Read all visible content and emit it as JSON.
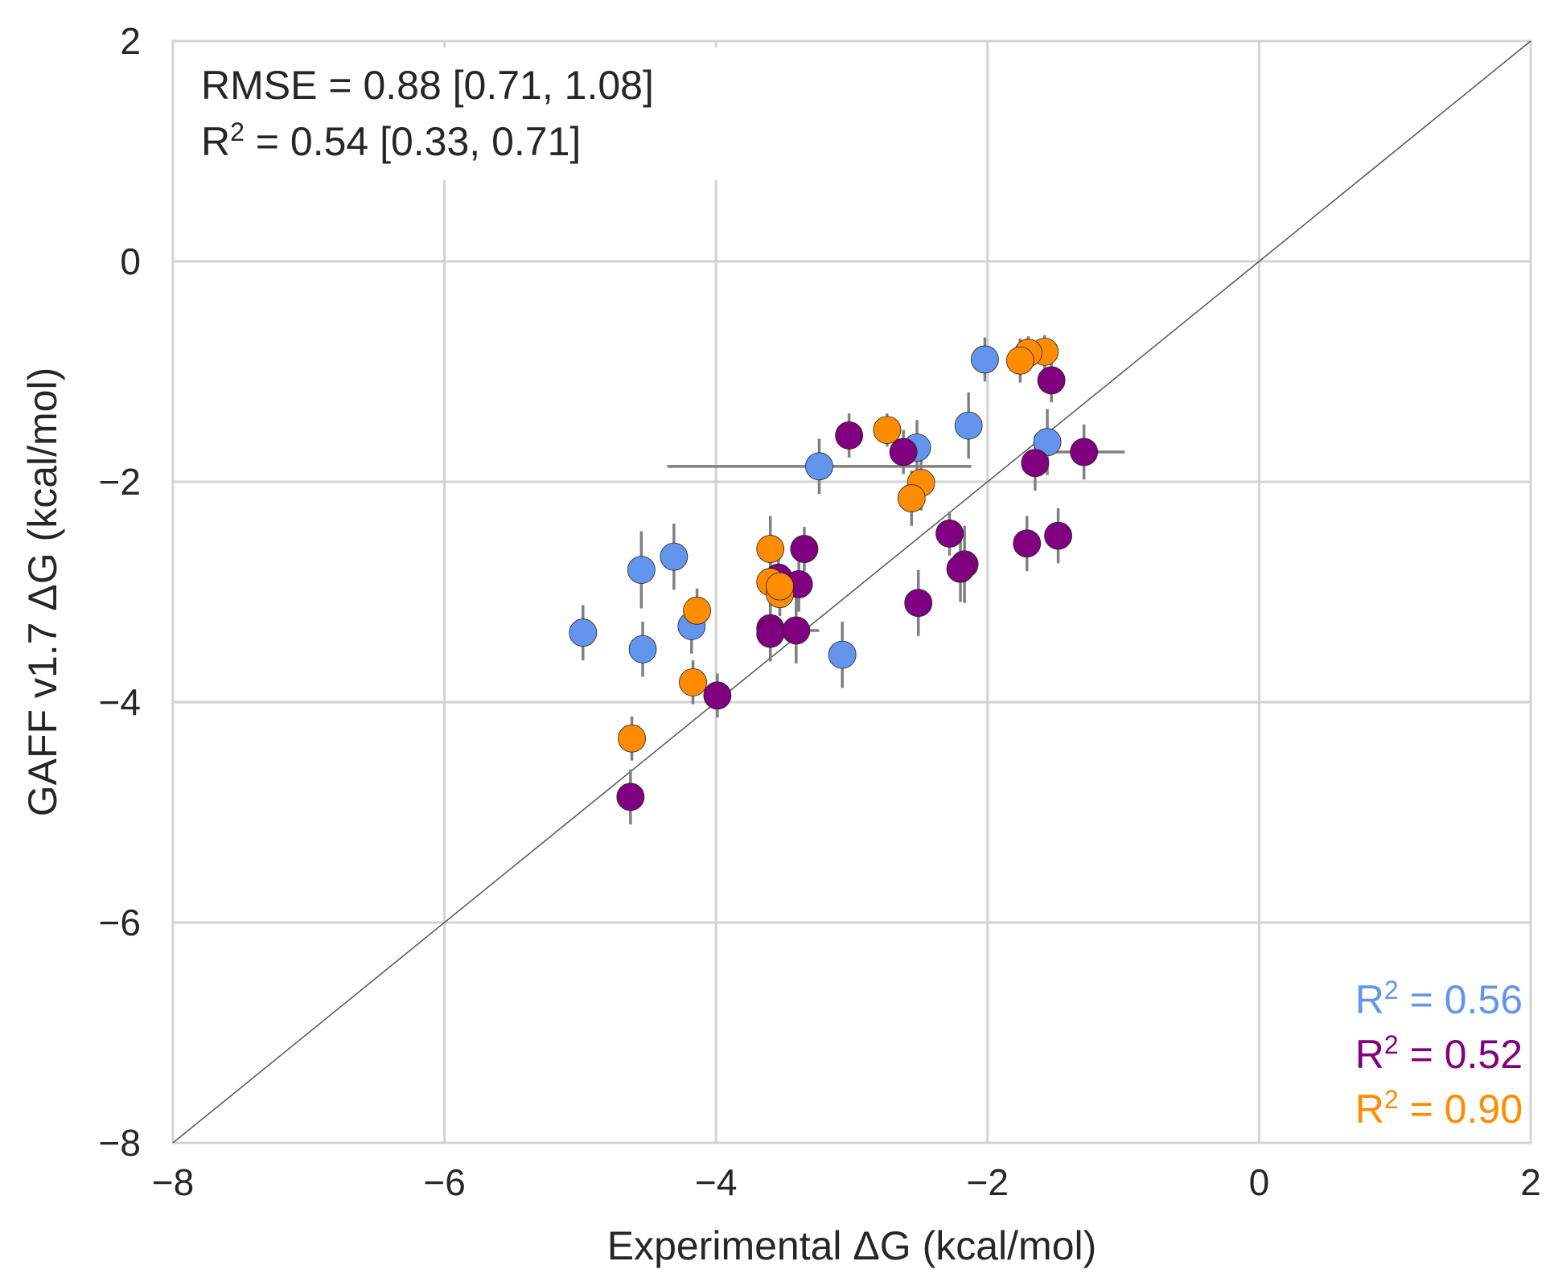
{
  "chart_data": {
    "type": "scatter",
    "xlabel": "Experimental ΔG (kcal/mol)",
    "ylabel": "GAFF v1.7 ΔG (kcal/mol)",
    "xlim": [
      -8,
      2
    ],
    "ylim": [
      -8,
      2
    ],
    "xticks": [
      -8,
      -6,
      -4,
      -2,
      0,
      2
    ],
    "yticks": [
      -8,
      -6,
      -4,
      -2,
      0,
      2
    ],
    "xtick_labels": [
      "−8",
      "−6",
      "−4",
      "−2",
      "0",
      "2"
    ],
    "ytick_labels": [
      "−8",
      "−6",
      "−4",
      "−2",
      "0",
      "2"
    ],
    "grid": true,
    "reference_line": "y = x",
    "stats": {
      "rmse_text": "RMSE = 0.88 [0.71, 1.08]",
      "r2_prefix": "R",
      "r2_sup": "2",
      "r2_rest": " = 0.54 [0.33, 0.71]"
    },
    "series": [
      {
        "name": "blue",
        "color": "#6495ED",
        "r2_prefix": "R",
        "r2_sup": "2",
        "r2_rest": " = 0.56",
        "points": [
          {
            "x": -2.02,
            "y": -0.89,
            "xerr": 0.0,
            "yerr": 0.2
          },
          {
            "x": -2.14,
            "y": -1.49,
            "xerr": 0.0,
            "yerr": 0.3
          },
          {
            "x": -1.56,
            "y": -1.64,
            "xerr": 0.0,
            "yerr": 0.3
          },
          {
            "x": -2.52,
            "y": -1.69,
            "xerr": 0.0,
            "yerr": 0.25
          },
          {
            "x": -3.24,
            "y": -1.86,
            "xerr": 1.12,
            "yerr": 0.25
          },
          {
            "x": -4.31,
            "y": -2.68,
            "xerr": 0.0,
            "yerr": 0.3
          },
          {
            "x": -4.55,
            "y": -2.8,
            "xerr": 0.0,
            "yerr": 0.35
          },
          {
            "x": -4.98,
            "y": -3.37,
            "xerr": 0.0,
            "yerr": 0.25
          },
          {
            "x": -4.18,
            "y": -3.31,
            "xerr": 0.0,
            "yerr": 0.25
          },
          {
            "x": -4.54,
            "y": -3.52,
            "xerr": 0.0,
            "yerr": 0.25
          },
          {
            "x": -3.07,
            "y": -3.57,
            "xerr": 0.0,
            "yerr": 0.3
          }
        ]
      },
      {
        "name": "purple",
        "color": "#800080",
        "r2_prefix": "R",
        "r2_sup": "2",
        "r2_rest": " = 0.52",
        "points": [
          {
            "x": -1.53,
            "y": -1.08,
            "xerr": 0.0,
            "yerr": 0.2
          },
          {
            "x": -3.02,
            "y": -1.58,
            "xerr": 0.0,
            "yerr": 0.2
          },
          {
            "x": -2.62,
            "y": -1.73,
            "xerr": 0.0,
            "yerr": 0.2
          },
          {
            "x": -1.29,
            "y": -1.73,
            "xerr": 0.3,
            "yerr": 0.25
          },
          {
            "x": -1.65,
            "y": -1.83,
            "xerr": 0.0,
            "yerr": 0.25
          },
          {
            "x": -2.28,
            "y": -2.47,
            "xerr": 0.0,
            "yerr": 0.2
          },
          {
            "x": -1.71,
            "y": -2.56,
            "xerr": 0.0,
            "yerr": 0.25
          },
          {
            "x": -1.48,
            "y": -2.49,
            "xerr": 0.0,
            "yerr": 0.25
          },
          {
            "x": -3.35,
            "y": -2.61,
            "xerr": 0.0,
            "yerr": 0.2
          },
          {
            "x": -2.17,
            "y": -2.75,
            "xerr": 0.0,
            "yerr": 0.35
          },
          {
            "x": -2.2,
            "y": -2.79,
            "xerr": 0.0,
            "yerr": 0.3
          },
          {
            "x": -3.54,
            "y": -2.87,
            "xerr": 0.0,
            "yerr": 0.2
          },
          {
            "x": -3.39,
            "y": -2.93,
            "xerr": 0.0,
            "yerr": 0.25
          },
          {
            "x": -2.51,
            "y": -3.1,
            "xerr": 0.0,
            "yerr": 0.3
          },
          {
            "x": -3.6,
            "y": -3.33,
            "xerr": 0.0,
            "yerr": 0.3
          },
          {
            "x": -3.41,
            "y": -3.35,
            "xerr": 0.17,
            "yerr": 0.3
          },
          {
            "x": -3.6,
            "y": -3.38,
            "xerr": 0.0,
            "yerr": 0.25
          },
          {
            "x": -3.99,
            "y": -3.94,
            "xerr": 0.0,
            "yerr": 0.2
          },
          {
            "x": -4.63,
            "y": -4.86,
            "xerr": 0.0,
            "yerr": 0.25
          }
        ]
      },
      {
        "name": "orange",
        "color": "#FF8C00",
        "r2_prefix": "R",
        "r2_sup": "2",
        "r2_rest": " = 0.90",
        "points": [
          {
            "x": -1.58,
            "y": -0.82,
            "xerr": 0.0,
            "yerr": 0.15
          },
          {
            "x": -1.7,
            "y": -0.83,
            "xerr": 0.0,
            "yerr": 0.15
          },
          {
            "x": -1.76,
            "y": -0.9,
            "xerr": 0.0,
            "yerr": 0.2
          },
          {
            "x": -2.74,
            "y": -1.53,
            "xerr": 0.0,
            "yerr": 0.15
          },
          {
            "x": -2.49,
            "y": -2.01,
            "xerr": 0.0,
            "yerr": 0.25
          },
          {
            "x": -2.56,
            "y": -2.15,
            "xerr": 0.0,
            "yerr": 0.25
          },
          {
            "x": -3.6,
            "y": -2.61,
            "xerr": 0.0,
            "yerr": 0.3
          },
          {
            "x": -3.6,
            "y": -2.91,
            "xerr": 0.0,
            "yerr": 0.2
          },
          {
            "x": -3.53,
            "y": -3.02,
            "xerr": 0.0,
            "yerr": 0.2
          },
          {
            "x": -3.53,
            "y": -2.95,
            "xerr": 0.0,
            "yerr": 0.2
          },
          {
            "x": -4.14,
            "y": -3.17,
            "xerr": 0.0,
            "yerr": 0.2
          },
          {
            "x": -4.17,
            "y": -3.82,
            "xerr": 0.0,
            "yerr": 0.2
          },
          {
            "x": -4.62,
            "y": -4.33,
            "xerr": 0.0,
            "yerr": 0.2
          }
        ]
      }
    ]
  }
}
